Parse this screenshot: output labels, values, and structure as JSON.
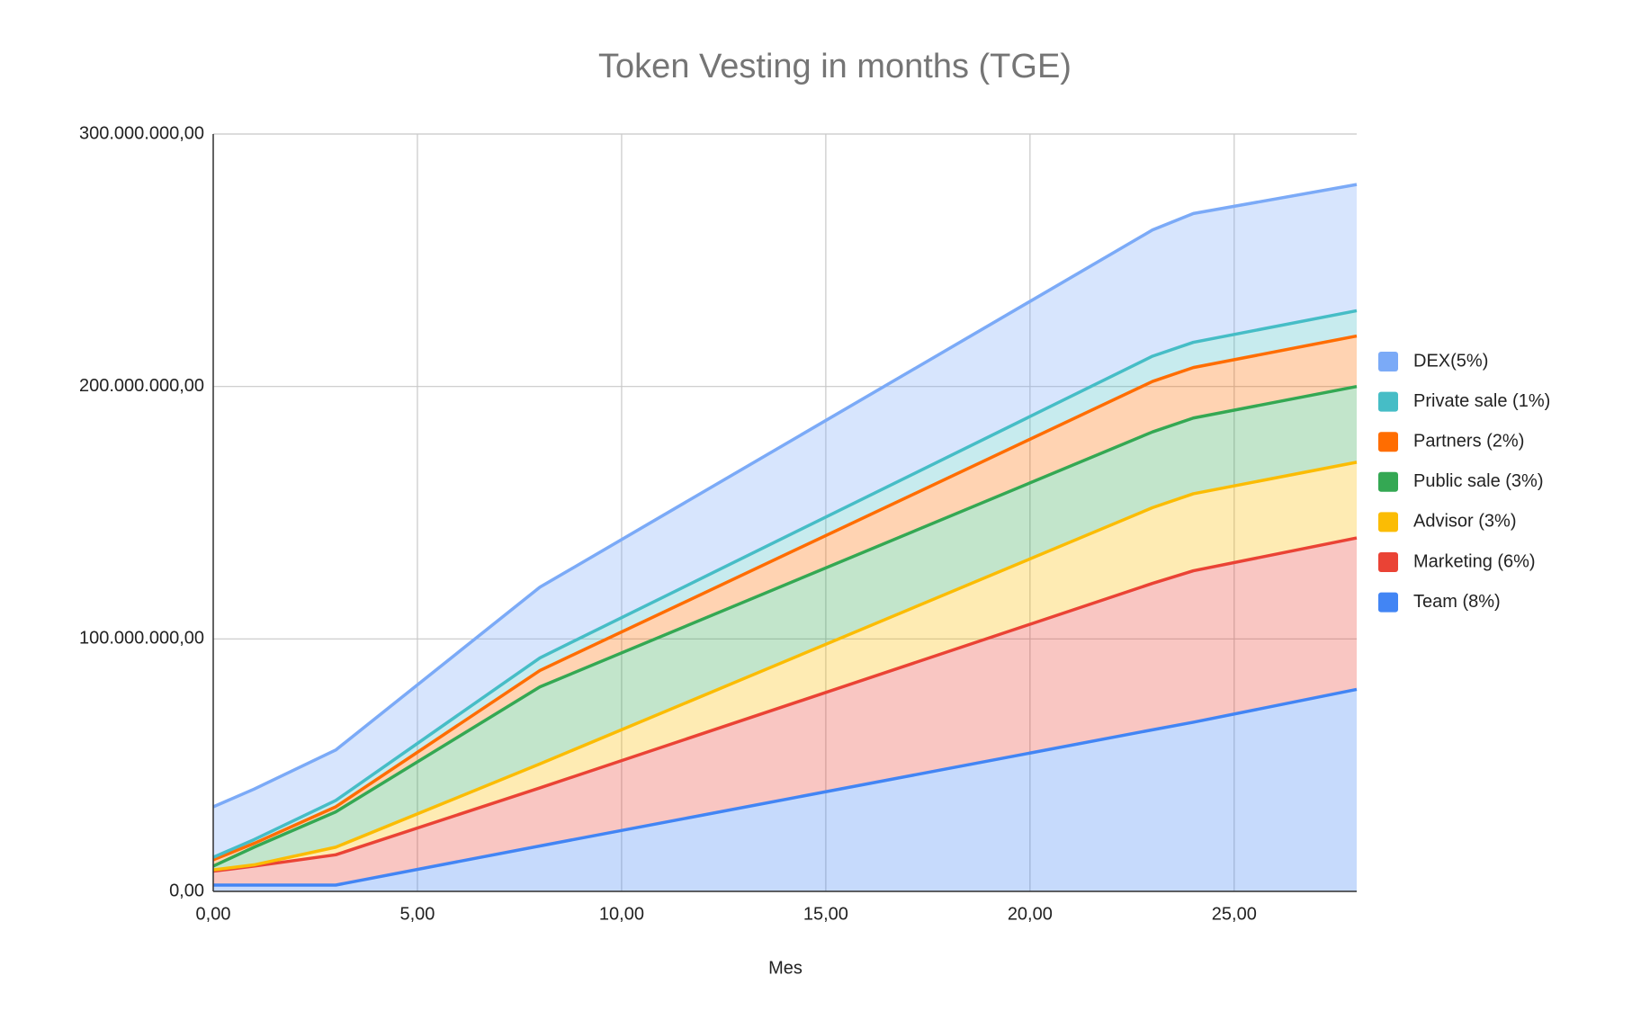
{
  "chart_data": {
    "type": "stacked-area",
    "title": "Token Vesting in months (TGE)",
    "x_label": "Mes",
    "x": [
      0,
      1,
      3,
      8,
      23,
      24,
      28
    ],
    "series": [
      {
        "name": "Team (8%)",
        "color": "#4285f4",
        "values": [
          2500000,
          2500000,
          2500000,
          18000000,
          64000000,
          67000000,
          80000000
        ]
      },
      {
        "name": "Marketing (6%)",
        "color": "#ea4335",
        "values": [
          5500000,
          7500000,
          12000000,
          23000000,
          58000000,
          60000000,
          60000000
        ]
      },
      {
        "name": "Advisor (3%)",
        "color": "#fbbc04",
        "values": [
          500000,
          500000,
          3000000,
          9500000,
          30000000,
          30500000,
          30000000
        ]
      },
      {
        "name": "Public sale (3%)",
        "color": "#34a853",
        "values": [
          1500000,
          7000000,
          14000000,
          30500000,
          30000000,
          30000000,
          30000000
        ]
      },
      {
        "name": "Partners (2%)",
        "color": "#ff6d01",
        "values": [
          2500000,
          1500000,
          2000000,
          6500000,
          20000000,
          20000000,
          20000000
        ]
      },
      {
        "name": "Private sale (1%)",
        "color": "#46bdc6",
        "values": [
          1000000,
          1500000,
          2500000,
          5000000,
          10000000,
          10000000,
          10000000
        ]
      },
      {
        "name": "DEX(5%)",
        "color": "#7baaf7",
        "values": [
          20000000,
          20000000,
          20000000,
          28000000,
          50000000,
          51000000,
          50000000
        ]
      }
    ],
    "xlim": [
      0,
      28
    ],
    "xticks": [
      {
        "value": 0,
        "label": "0,00"
      },
      {
        "value": 5,
        "label": "5,00"
      },
      {
        "value": 10,
        "label": "10,00"
      },
      {
        "value": 15,
        "label": "15,00"
      },
      {
        "value": 20,
        "label": "20,00"
      },
      {
        "value": 25,
        "label": "25,00"
      }
    ],
    "ylim": [
      0,
      300000000
    ],
    "yticks": [
      {
        "value": 0,
        "label": "0,00"
      },
      {
        "value": 100000000,
        "label": "100.000.000,00"
      },
      {
        "value": 200000000,
        "label": "200.000.000,00"
      },
      {
        "value": 300000000,
        "label": "300.000.000,00"
      }
    ],
    "grid": true,
    "legend": "right"
  }
}
